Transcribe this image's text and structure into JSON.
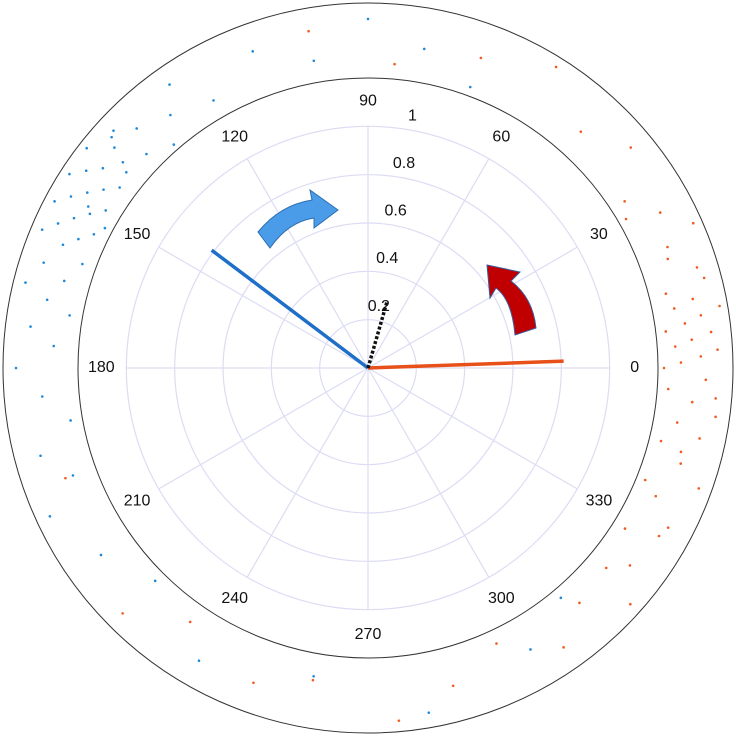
{
  "chart_data": {
    "type": "polar",
    "rlim": [
      0,
      1.2
    ],
    "rticks": [
      0.2,
      0.4,
      0.6,
      0.8,
      1
    ],
    "theta_ticks": [
      0,
      30,
      60,
      90,
      120,
      150,
      180,
      210,
      240,
      270,
      300,
      330
    ],
    "grid": true,
    "grid_color": "#dcdcf4",
    "vectors": [
      {
        "color": "#e8501a",
        "theta": 2,
        "r": 0.81,
        "dashed": false
      },
      {
        "color": "#1f6fc8",
        "theta": 143,
        "r": 0.81,
        "dashed": false
      },
      {
        "color": "#111111",
        "theta": 74,
        "r": 0.29,
        "dashed": true
      }
    ],
    "points": [
      {
        "color": "#f05a1e",
        "theta": [
          0,
          2,
          4,
          6,
          8,
          10,
          12,
          14,
          17,
          20,
          24,
          28,
          33,
          40,
          48,
          58,
          70,
          85,
          100,
          260,
          275,
          285,
          295,
          305,
          312,
          318,
          323,
          328,
          332,
          336,
          340,
          343,
          346,
          348,
          350,
          352,
          354,
          356,
          358,
          1,
          3,
          5,
          7,
          9,
          11,
          355,
          345,
          338,
          330,
          320,
          15,
          22,
          30,
          250,
          235,
          225,
          200
        ]
      },
      {
        "color": "#1f88d8",
        "theta": [
          120,
          125,
          128,
          131,
          134,
          136,
          138,
          140,
          142,
          143,
          144,
          145,
          146,
          147,
          148,
          149,
          150,
          151,
          152,
          153,
          154,
          155,
          156,
          157,
          158,
          160,
          162,
          164,
          166,
          168,
          170,
          173,
          176,
          180,
          185,
          190,
          195,
          200,
          205,
          215,
          225,
          240,
          260,
          280,
          300,
          310,
          110,
          100,
          90,
          80,
          70,
          139,
          141,
          137,
          150,
          152
        ]
      }
    ]
  }
}
